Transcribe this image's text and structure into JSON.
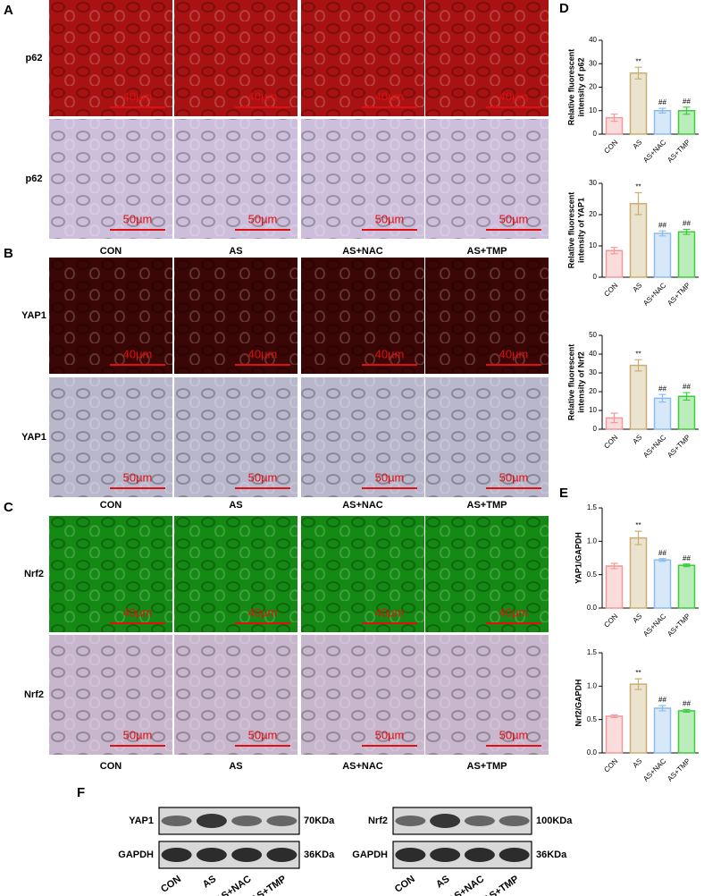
{
  "panel_labels": [
    "A",
    "B",
    "C",
    "D",
    "E",
    "F"
  ],
  "groups": [
    "CON",
    "AS",
    "AS+NAC",
    "AS+TMP"
  ],
  "image_rows": [
    {
      "label": "p62",
      "scale": "40µm",
      "color": "#a81212"
    },
    {
      "label": "p62",
      "scale": "50µm",
      "color": "#cdbfdc"
    },
    {
      "label": "YAP1",
      "scale": "40µm",
      "color": "#3a0606"
    },
    {
      "label": "YAP1",
      "scale": "50µm",
      "color": "#b9b7cc"
    },
    {
      "label": "Nrf2",
      "scale": "40µm",
      "color": "#148a14"
    },
    {
      "label": "Nrf2",
      "scale": "50µm",
      "color": "#c7b6cc"
    }
  ],
  "blots": [
    {
      "rows": [
        "YAP1",
        "GAPDH"
      ],
      "sizes": [
        "70KDa",
        "36KDa"
      ]
    },
    {
      "rows": [
        "Nrf2",
        "GAPDH"
      ],
      "sizes": [
        "100KDa",
        "36KDa"
      ]
    }
  ],
  "chart_data": [
    {
      "type": "bar",
      "ylabel": [
        "Relative fluorescent",
        "intensity of p62"
      ],
      "categories": [
        "CON",
        "AS",
        "AS+NAC",
        "AS+TMP"
      ],
      "values": [
        7,
        26,
        10,
        10
      ],
      "errors": [
        1.5,
        2.5,
        1,
        1.5
      ],
      "annotations": [
        null,
        "**",
        "##",
        "##"
      ],
      "colors": [
        "#f29a9a",
        "#c8ae72",
        "#8dbcec",
        "#3ccc3c"
      ],
      "ylim": [
        0,
        40
      ],
      "yticks": [
        0,
        10,
        20,
        30,
        40
      ]
    },
    {
      "type": "bar",
      "ylabel": [
        "Relative fluorescent",
        "intensity of YAP1"
      ],
      "categories": [
        "CON",
        "AS",
        "AS+NAC",
        "AS+TMP"
      ],
      "values": [
        8.5,
        23.5,
        14,
        14.5
      ],
      "errors": [
        1,
        3.5,
        0.8,
        0.8
      ],
      "annotations": [
        null,
        "**",
        "##",
        "##"
      ],
      "colors": [
        "#f29a9a",
        "#c8ae72",
        "#8dbcec",
        "#3ccc3c"
      ],
      "ylim": [
        0,
        30
      ],
      "yticks": [
        0,
        10,
        20,
        30
      ]
    },
    {
      "type": "bar",
      "ylabel": [
        "Relative fluorescent",
        "intensity of Nrf2"
      ],
      "categories": [
        "CON",
        "AS",
        "AS+NAC",
        "AS+TMP"
      ],
      "values": [
        6,
        34,
        16.5,
        17.5
      ],
      "errors": [
        2.5,
        3,
        2,
        2
      ],
      "annotations": [
        null,
        "**",
        "##",
        "##"
      ],
      "colors": [
        "#f29a9a",
        "#c8ae72",
        "#8dbcec",
        "#3ccc3c"
      ],
      "ylim": [
        0,
        50
      ],
      "yticks": [
        0,
        10,
        20,
        30,
        40,
        50
      ]
    },
    {
      "type": "bar",
      "ylabel": [
        "YAP1/GAPDH"
      ],
      "categories": [
        "CON",
        "AS",
        "AS+NAC",
        "AS+TMP"
      ],
      "values": [
        0.63,
        1.05,
        0.72,
        0.64
      ],
      "errors": [
        0.04,
        0.1,
        0.02,
        0.02
      ],
      "annotations": [
        null,
        "**",
        "##",
        "##"
      ],
      "colors": [
        "#f29a9a",
        "#c8ae72",
        "#8dbcec",
        "#3ccc3c"
      ],
      "ylim": [
        0,
        1.5
      ],
      "yticks": [
        {
          "value": 0,
          "label": "0.0"
        },
        0.5,
        {
          "value": 1,
          "label": "1.0"
        },
        1.5
      ]
    },
    {
      "type": "bar",
      "ylabel": [
        "Nrf2/GAPDH"
      ],
      "categories": [
        "CON",
        "AS",
        "AS+NAC",
        "AS+TMP"
      ],
      "values": [
        0.55,
        1.03,
        0.67,
        0.63
      ],
      "errors": [
        0.02,
        0.08,
        0.04,
        0.02
      ],
      "annotations": [
        null,
        "**",
        "##",
        "##"
      ],
      "colors": [
        "#f29a9a",
        "#c8ae72",
        "#8dbcec",
        "#3ccc3c"
      ],
      "ylim": [
        0,
        1.5
      ],
      "yticks": [
        {
          "value": 0,
          "label": "0.0"
        },
        0.5,
        {
          "value": 1,
          "label": "1.0"
        },
        1.5
      ]
    }
  ]
}
